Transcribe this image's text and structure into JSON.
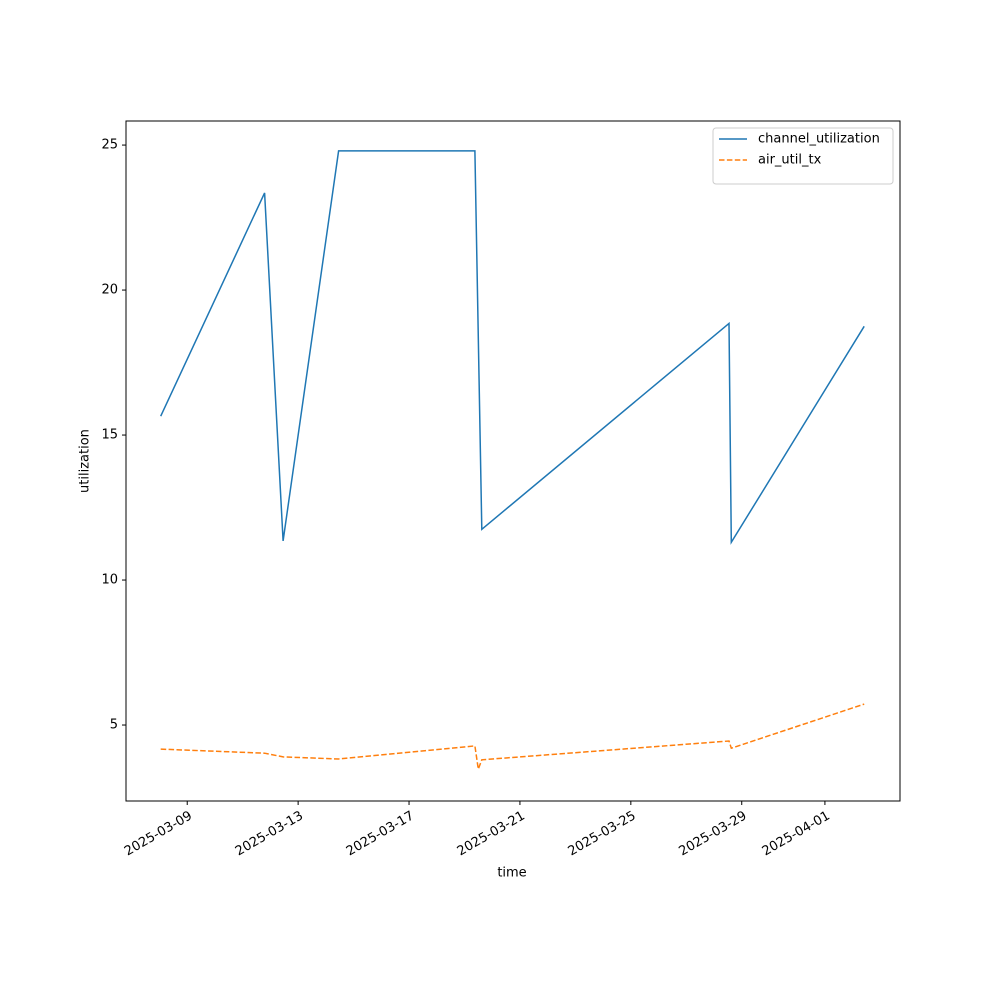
{
  "chart_data": {
    "type": "line",
    "xlabel": "time",
    "ylabel": "utilization",
    "xlim": [
      "2025-03-06T19:00",
      "2025-04-03T17:00"
    ],
    "xticks": [
      "2025-03-09",
      "2025-03-13",
      "2025-03-17",
      "2025-03-21",
      "2025-03-25",
      "2025-03-29",
      "2025-04-01"
    ],
    "ylim": [
      2.38,
      25.83
    ],
    "yticks": [
      5,
      10,
      15,
      20,
      25
    ],
    "legend": "upper right",
    "series": [
      {
        "name": "channel_utilization",
        "color": "#1f77b4",
        "dash": false,
        "x": [
          "2025-03-08T01:00",
          "2025-03-11T19:00",
          "2025-03-12T11:00",
          "2025-03-14T11:00",
          "2025-03-19T09:00",
          "2025-03-19T15:00",
          "2025-03-28T13:00",
          "2025-03-28T15:00",
          "2025-04-02T10:00"
        ],
        "values": [
          15.65,
          23.35,
          11.35,
          24.8,
          24.8,
          11.75,
          18.85,
          11.3,
          18.75
        ]
      },
      {
        "name": "air_util_tx",
        "color": "#ff7f0e",
        "dash": true,
        "x": [
          "2025-03-08T01:00",
          "2025-03-11T19:00",
          "2025-03-12T11:00",
          "2025-03-14T11:00",
          "2025-03-19T09:00",
          "2025-03-19T12:00",
          "2025-03-19T15:00",
          "2025-03-28T13:00",
          "2025-03-28T15:00",
          "2025-04-02T10:00"
        ],
        "values": [
          4.17,
          4.03,
          3.9,
          3.83,
          4.28,
          3.48,
          3.8,
          4.45,
          4.2,
          5.72
        ]
      }
    ]
  }
}
